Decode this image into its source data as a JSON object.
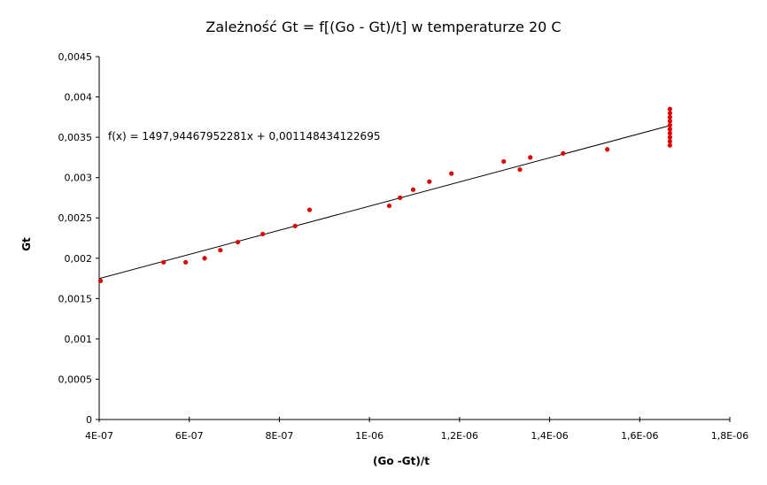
{
  "chart_data": {
    "type": "scatter",
    "title": "Zależność Gt = f[(Go - Gt)/t] w temperaturze 20 C",
    "xlabel": "(Go -Gt)/t",
    "ylabel": "Gt",
    "xlim": [
      4e-07,
      1.8e-06
    ],
    "ylim": [
      0,
      0.0045
    ],
    "x_ticks": [
      4e-07,
      6e-07,
      8e-07,
      1e-06,
      1.2e-06,
      1.4e-06,
      1.6e-06,
      1.8e-06
    ],
    "x_tick_labels": [
      "4E-07",
      "6E-07",
      "8E-07",
      "1E-06",
      "1,2E-06",
      "1,4E-06",
      "1,6E-06",
      "1,8E-06"
    ],
    "y_ticks": [
      0,
      0.0005,
      0.001,
      0.0015,
      0.002,
      0.0025,
      0.003,
      0.0035,
      0.004,
      0.0045
    ],
    "y_tick_labels": [
      "0",
      "0,0005",
      "0,001",
      "0,0015",
      "0,002",
      "0,0025",
      "0,003",
      "0,0035",
      "0,004",
      "0,0045"
    ],
    "grid": false,
    "legend": "none",
    "point_color": "#dd0000",
    "line_color": "#000000",
    "series": [
      {
        "x": [
          4.03e-07,
          5.43e-07,
          5.92e-07,
          6.34e-07,
          6.69e-07,
          7.08e-07,
          7.63e-07,
          8.35e-07,
          8.67e-07,
          1.044e-06,
          1.068e-06,
          1.097e-06,
          1.133e-06,
          1.182e-06,
          1.298e-06,
          1.334e-06,
          1.357e-06,
          1.43e-06,
          1.528e-06,
          1.667e-06,
          1.667e-06,
          1.667e-06,
          1.667e-06,
          1.667e-06,
          1.667e-06,
          1.667e-06,
          1.667e-06,
          1.667e-06,
          1.667e-06
        ],
        "y": [
          0.00172,
          0.00195,
          0.00195,
          0.002,
          0.0021,
          0.0022,
          0.0023,
          0.0024,
          0.0026,
          0.00265,
          0.00275,
          0.00285,
          0.00295,
          0.00305,
          0.0032,
          0.0031,
          0.00325,
          0.0033,
          0.00335,
          0.0034,
          0.00345,
          0.0035,
          0.00355,
          0.0036,
          0.00365,
          0.0037,
          0.00375,
          0.0038,
          0.00385
        ]
      }
    ],
    "trendline": {
      "slope": 1497.94467952281,
      "intercept": 0.001148434122695,
      "x_range": [
        4e-07,
        1.667e-06
      ],
      "equation": "f(x) = 1497,94467952281x + 0,001148434122695"
    }
  }
}
